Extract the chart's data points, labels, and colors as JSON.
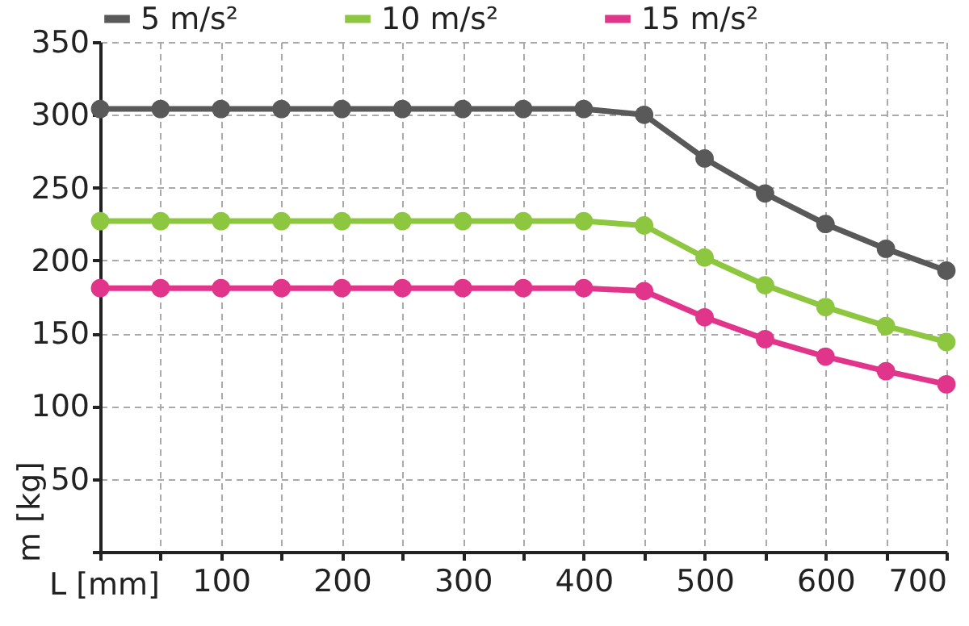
{
  "chart_data": {
    "type": "line",
    "xlabel": "L [mm]",
    "ylabel": "m [kg]",
    "x": [
      0,
      50,
      100,
      150,
      200,
      250,
      300,
      350,
      400,
      450,
      500,
      550,
      600,
      650,
      700
    ],
    "series": [
      {
        "name": "5 m/s²",
        "color": "#595959",
        "values": [
          304,
          304,
          304,
          304,
          304,
          304,
          304,
          304,
          304,
          300,
          270,
          246,
          225,
          208,
          193
        ]
      },
      {
        "name": "10 m/s²",
        "color": "#8dc63f",
        "values": [
          227,
          227,
          227,
          227,
          227,
          227,
          227,
          227,
          227,
          224,
          202,
          183,
          168,
          155,
          144
        ]
      },
      {
        "name": "15 m/s²",
        "color": "#e0358a",
        "values": [
          181,
          181,
          181,
          181,
          181,
          181,
          181,
          181,
          181,
          179,
          161,
          146,
          134,
          124,
          115
        ]
      }
    ],
    "xlim": [
      0,
      700
    ],
    "ylim": [
      0,
      350
    ],
    "xticks": [
      {
        "value": 0,
        "label": null
      },
      {
        "value": 50,
        "label": null
      },
      100,
      {
        "value": 150,
        "label": null
      },
      200,
      {
        "value": 250,
        "label": null
      },
      300,
      {
        "value": 350,
        "label": null
      },
      400,
      {
        "value": 450,
        "label": null
      },
      500,
      {
        "value": 550,
        "label": null
      },
      600,
      {
        "value": 650,
        "label": null
      },
      700
    ],
    "yticks": [
      {
        "value": 0,
        "label": null
      },
      50,
      100,
      150,
      200,
      250,
      300,
      350
    ],
    "grid": true,
    "legend": "top",
    "marker": "circle",
    "line_style": "solid"
  }
}
